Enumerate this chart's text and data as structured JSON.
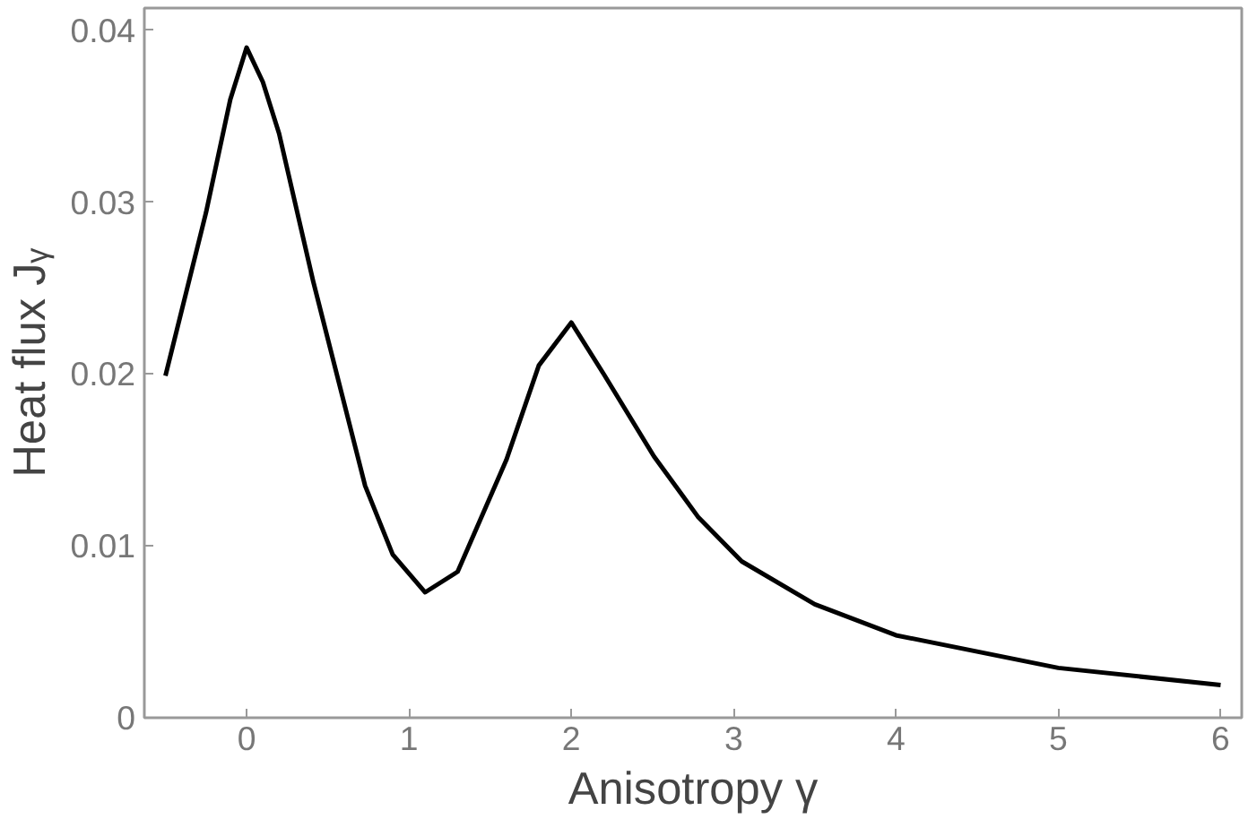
{
  "chart_data": {
    "type": "line",
    "xlabel": "Anisotropy γ",
    "ylabel": "Heat flux Jᵧ",
    "xlim": [
      -0.63,
      6.13
    ],
    "ylim": [
      0,
      0.0413
    ],
    "xticks": [
      0,
      1,
      2,
      3,
      4,
      5,
      6
    ],
    "yticks": [
      0,
      0.01,
      0.02,
      0.03,
      0.04
    ],
    "grid": false,
    "line_style": "solid",
    "series": [
      {
        "color": "#000000",
        "x": [
          -0.5,
          -0.25,
          -0.1,
          0,
          0.1,
          0.2,
          0.41,
          0.73,
          0.9,
          1.1,
          1.3,
          1.6,
          1.8,
          2.0,
          2.2,
          2.51,
          2.78,
          3.05,
          3.5,
          4.0,
          5.0,
          6.0
        ],
        "values": [
          0.0199,
          0.0294,
          0.036,
          0.039,
          0.037,
          0.034,
          0.0254,
          0.0135,
          0.0095,
          0.0073,
          0.0085,
          0.015,
          0.0205,
          0.023,
          0.02,
          0.0152,
          0.0117,
          0.0091,
          0.0066,
          0.0048,
          0.0029,
          0.0019
        ]
      }
    ]
  }
}
